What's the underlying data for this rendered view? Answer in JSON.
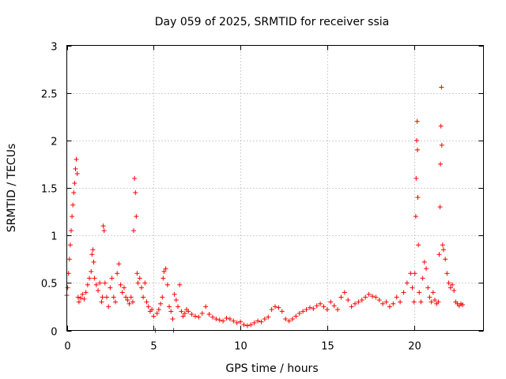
{
  "chart_data": {
    "type": "scatter",
    "title": "Day 059 of 2025, SRMTID for receiver ssia",
    "xlabel": "GPS time / hours",
    "ylabel": "SRMTID / TECUs",
    "xlim": [
      0,
      24
    ],
    "ylim": [
      0,
      3
    ],
    "xticks": [
      0,
      5,
      10,
      15,
      20
    ],
    "yticks": [
      0,
      0.5,
      1,
      1.5,
      2,
      2.5,
      3
    ],
    "xtick_labels": [
      "0",
      "5",
      "10",
      "15",
      "20"
    ],
    "ytick_labels": [
      "0",
      "0.5",
      "1",
      "1.5",
      "2",
      "2.5",
      "3"
    ],
    "grid": true,
    "marker": "+",
    "series": [
      {
        "name": "SRMTID",
        "color": "#ff0000",
        "points": [
          [
            0.0,
            0.37
          ],
          [
            0.05,
            0.45
          ],
          [
            0.1,
            0.6
          ],
          [
            0.15,
            0.75
          ],
          [
            0.2,
            0.9
          ],
          [
            0.25,
            1.05
          ],
          [
            0.3,
            1.2
          ],
          [
            0.35,
            1.32
          ],
          [
            0.4,
            1.45
          ],
          [
            0.45,
            1.55
          ],
          [
            0.5,
            1.7
          ],
          [
            0.55,
            1.8
          ],
          [
            0.6,
            1.65
          ],
          [
            0.65,
            0.35
          ],
          [
            0.7,
            0.3
          ],
          [
            0.8,
            0.34
          ],
          [
            0.9,
            0.38
          ],
          [
            1.0,
            0.33
          ],
          [
            1.1,
            0.4
          ],
          [
            1.2,
            0.48
          ],
          [
            1.3,
            0.55
          ],
          [
            1.4,
            0.62
          ],
          [
            1.45,
            0.8
          ],
          [
            1.5,
            0.85
          ],
          [
            1.55,
            0.72
          ],
          [
            1.6,
            0.55
          ],
          [
            1.7,
            0.48
          ],
          [
            1.8,
            0.42
          ],
          [
            1.9,
            0.5
          ],
          [
            2.0,
            0.3
          ],
          [
            2.05,
            0.35
          ],
          [
            2.1,
            1.1
          ],
          [
            2.15,
            1.05
          ],
          [
            2.2,
            0.5
          ],
          [
            2.3,
            0.35
          ],
          [
            2.4,
            0.25
          ],
          [
            2.5,
            0.45
          ],
          [
            2.6,
            0.55
          ],
          [
            2.7,
            0.35
          ],
          [
            2.8,
            0.3
          ],
          [
            2.9,
            0.6
          ],
          [
            3.0,
            0.7
          ],
          [
            3.1,
            0.48
          ],
          [
            3.2,
            0.4
          ],
          [
            3.3,
            0.45
          ],
          [
            3.4,
            0.35
          ],
          [
            3.5,
            0.32
          ],
          [
            3.6,
            0.28
          ],
          [
            3.7,
            0.35
          ],
          [
            3.8,
            0.3
          ],
          [
            3.85,
            1.05
          ],
          [
            3.9,
            1.6
          ],
          [
            3.95,
            1.45
          ],
          [
            4.0,
            1.2
          ],
          [
            4.05,
            0.6
          ],
          [
            4.1,
            0.5
          ],
          [
            4.2,
            0.55
          ],
          [
            4.3,
            0.45
          ],
          [
            4.4,
            0.35
          ],
          [
            4.5,
            0.5
          ],
          [
            4.6,
            0.3
          ],
          [
            4.7,
            0.25
          ],
          [
            4.8,
            0.2
          ],
          [
            4.9,
            0.22
          ],
          [
            5.0,
            0.15
          ],
          [
            5.1,
            0.0
          ],
          [
            5.2,
            0.18
          ],
          [
            5.3,
            0.22
          ],
          [
            5.4,
            0.28
          ],
          [
            5.5,
            0.35
          ],
          [
            5.55,
            0.55
          ],
          [
            5.6,
            0.62
          ],
          [
            5.7,
            0.65
          ],
          [
            5.8,
            0.48
          ],
          [
            5.9,
            0.25
          ],
          [
            6.0,
            0.2
          ],
          [
            6.1,
            0.12
          ],
          [
            6.15,
            0.0
          ],
          [
            6.2,
            0.38
          ],
          [
            6.3,
            0.32
          ],
          [
            6.4,
            0.25
          ],
          [
            6.5,
            0.48
          ],
          [
            6.6,
            0.2
          ],
          [
            6.7,
            0.15
          ],
          [
            6.8,
            0.18
          ],
          [
            6.9,
            0.22
          ],
          [
            7.0,
            0.2
          ],
          [
            7.2,
            0.17
          ],
          [
            7.4,
            0.15
          ],
          [
            7.6,
            0.14
          ],
          [
            7.8,
            0.18
          ],
          [
            8.0,
            0.25
          ],
          [
            8.2,
            0.17
          ],
          [
            8.4,
            0.14
          ],
          [
            8.6,
            0.12
          ],
          [
            8.8,
            0.11
          ],
          [
            9.0,
            0.1
          ],
          [
            9.2,
            0.13
          ],
          [
            9.4,
            0.12
          ],
          [
            9.6,
            0.1
          ],
          [
            9.8,
            0.08
          ],
          [
            10.0,
            0.09
          ],
          [
            10.2,
            0.06
          ],
          [
            10.4,
            0.05
          ],
          [
            10.6,
            0.06
          ],
          [
            10.8,
            0.08
          ],
          [
            11.0,
            0.1
          ],
          [
            11.2,
            0.09
          ],
          [
            11.4,
            0.12
          ],
          [
            11.6,
            0.14
          ],
          [
            11.8,
            0.22
          ],
          [
            12.0,
            0.25
          ],
          [
            12.2,
            0.24
          ],
          [
            12.4,
            0.2
          ],
          [
            12.6,
            0.12
          ],
          [
            12.8,
            0.1
          ],
          [
            13.0,
            0.12
          ],
          [
            13.2,
            0.15
          ],
          [
            13.4,
            0.18
          ],
          [
            13.6,
            0.2
          ],
          [
            13.8,
            0.22
          ],
          [
            14.0,
            0.24
          ],
          [
            14.2,
            0.23
          ],
          [
            14.4,
            0.26
          ],
          [
            14.6,
            0.28
          ],
          [
            14.8,
            0.25
          ],
          [
            15.0,
            0.22
          ],
          [
            15.2,
            0.3
          ],
          [
            15.4,
            0.26
          ],
          [
            15.6,
            0.22
          ],
          [
            15.8,
            0.35
          ],
          [
            16.0,
            0.4
          ],
          [
            16.2,
            0.32
          ],
          [
            16.4,
            0.25
          ],
          [
            16.6,
            0.28
          ],
          [
            16.8,
            0.3
          ],
          [
            17.0,
            0.32
          ],
          [
            17.2,
            0.35
          ],
          [
            17.4,
            0.38
          ],
          [
            17.6,
            0.36
          ],
          [
            17.8,
            0.35
          ],
          [
            18.0,
            0.32
          ],
          [
            18.2,
            0.28
          ],
          [
            18.4,
            0.3
          ],
          [
            18.6,
            0.25
          ],
          [
            18.8,
            0.28
          ],
          [
            19.0,
            0.35
          ],
          [
            19.2,
            0.3
          ],
          [
            19.4,
            0.4
          ],
          [
            19.6,
            0.5
          ],
          [
            19.8,
            0.6
          ],
          [
            19.9,
            0.45
          ],
          [
            20.0,
            0.3
          ],
          [
            20.05,
            0.6
          ],
          [
            20.1,
            1.2
          ],
          [
            20.12,
            1.6
          ],
          [
            20.15,
            2.0
          ],
          [
            20.18,
            2.2
          ],
          [
            20.2,
            1.9
          ],
          [
            20.22,
            1.4
          ],
          [
            20.25,
            0.9
          ],
          [
            20.3,
            0.4
          ],
          [
            20.4,
            0.3
          ],
          [
            20.5,
            0.55
          ],
          [
            20.6,
            0.72
          ],
          [
            20.7,
            0.65
          ],
          [
            20.8,
            0.45
          ],
          [
            20.9,
            0.35
          ],
          [
            21.0,
            0.3
          ],
          [
            21.1,
            0.4
          ],
          [
            21.2,
            0.32
          ],
          [
            21.3,
            0.28
          ],
          [
            21.4,
            0.3
          ],
          [
            21.45,
            0.8
          ],
          [
            21.5,
            1.3
          ],
          [
            21.52,
            1.75
          ],
          [
            21.55,
            2.15
          ],
          [
            21.58,
            2.56
          ],
          [
            21.6,
            1.95
          ],
          [
            21.65,
            0.9
          ],
          [
            21.7,
            0.85
          ],
          [
            21.8,
            0.75
          ],
          [
            21.9,
            0.6
          ],
          [
            22.0,
            0.5
          ],
          [
            22.1,
            0.45
          ],
          [
            22.2,
            0.48
          ],
          [
            22.3,
            0.42
          ],
          [
            22.4,
            0.3
          ],
          [
            22.5,
            0.28
          ],
          [
            22.6,
            0.26
          ],
          [
            22.7,
            0.28
          ],
          [
            22.8,
            0.27
          ]
        ]
      }
    ]
  }
}
